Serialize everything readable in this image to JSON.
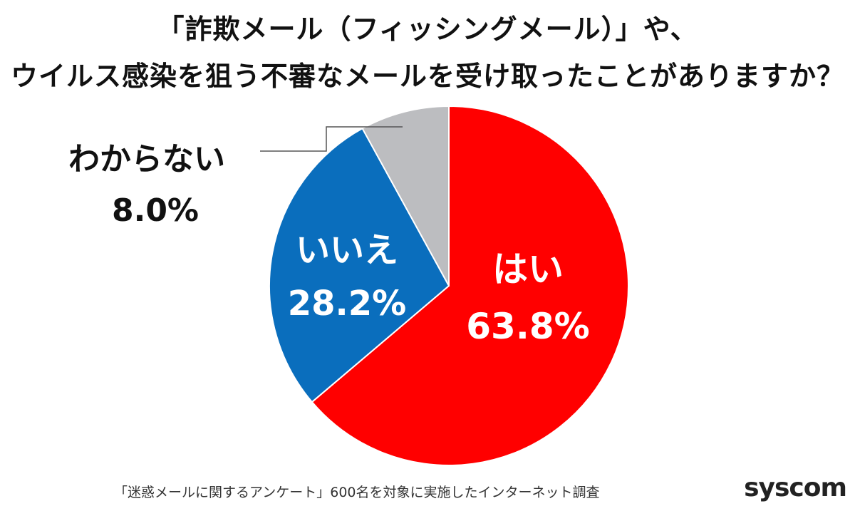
{
  "title": {
    "line1": "「詐欺メール（フィッシングメール）」や、",
    "line2": "ウイルス感染を狙う不審なメールを受け取ったことがありますか？"
  },
  "chart_data": {
    "type": "pie",
    "title": "「詐欺メール（フィッシングメール）」や、ウイルス感染を狙う不審なメールを受け取ったことがありますか？",
    "slices": [
      {
        "label": "はい",
        "value": 63.8,
        "value_label": "63.8%",
        "color": "#ff0000"
      },
      {
        "label": "いいえ",
        "value": 28.2,
        "value_label": "28.2%",
        "color": "#0a6ebd"
      },
      {
        "label": "わからない",
        "value": 8.0,
        "value_label": "8.0%",
        "color": "#bcbdc0"
      }
    ],
    "start_angle": "12 o'clock",
    "direction": "clockwise",
    "legend": "none"
  },
  "footnote": "「迷惑メールに関するアンケート」600名を対象に実施したインターネット調査",
  "logo": "syscom"
}
